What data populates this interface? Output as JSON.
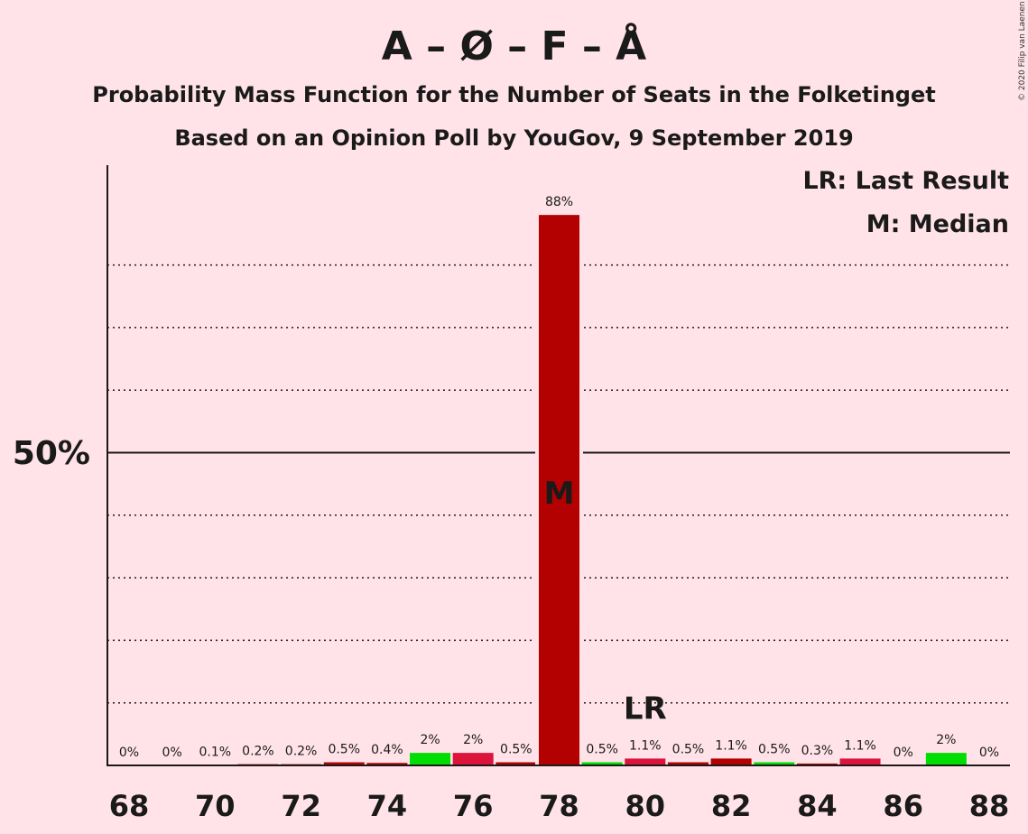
{
  "title": "A – Ø – F – Å",
  "subtitle_1": "Probability Mass Function for the Number of Seats in the Folketinget",
  "subtitle_2": "Based on an Opinion Poll by YouGov, 9 September 2019",
  "copyright": "© 2020 Filip van Laenen",
  "legend": {
    "last_result": "LR: Last Result",
    "median": "M: Median"
  },
  "colors": {
    "background": "#ffe3e8",
    "median_bar": "#b30000",
    "crimson_bar": "#dc143c",
    "green_bar": "#00dd00",
    "text": "#1a1a1a"
  },
  "chart_data": {
    "type": "bar",
    "x": [
      68,
      69,
      70,
      71,
      72,
      73,
      74,
      75,
      76,
      77,
      78,
      79,
      80,
      81,
      82,
      83,
      84,
      85,
      86,
      87,
      88
    ],
    "values": [
      0,
      0,
      0.1,
      0.2,
      0.2,
      0.5,
      0.4,
      2,
      2,
      0.5,
      88,
      0.5,
      1.1,
      0.5,
      1.1,
      0.5,
      0.3,
      1.1,
      0,
      2,
      0
    ],
    "labels": [
      "0%",
      "0%",
      "0.1%",
      "0.2%",
      "0.2%",
      "0.5%",
      "0.4%",
      "2%",
      "2%",
      "0.5%",
      "88%",
      "0.5%",
      "1.1%",
      "0.5%",
      "1.1%",
      "0.5%",
      "0.3%",
      "1.1%",
      "0%",
      "2%",
      "0%"
    ],
    "bar_colors": [
      "#b30000",
      "#b30000",
      "#b30000",
      "#b30000",
      "#b30000",
      "#b30000",
      "#b30000",
      "#00dd00",
      "#dc143c",
      "#b30000",
      "#b30000",
      "#00dd00",
      "#dc143c",
      "#b30000",
      "#b30000",
      "#00dd00",
      "#b30000",
      "#dc143c",
      "#b30000",
      "#00dd00",
      "#b30000"
    ],
    "x_tick_labels": [
      "68",
      "70",
      "72",
      "74",
      "76",
      "78",
      "80",
      "82",
      "84",
      "86",
      "88"
    ],
    "y_tick_label": "50%",
    "ylim": [
      0,
      96
    ],
    "y_gridlines": [
      10,
      20,
      30,
      40,
      60,
      70,
      80
    ],
    "y_major_line": 50,
    "median_seat": 78,
    "median_marker": "M",
    "last_result_seat": 80,
    "last_result_marker": "LR",
    "grid": true,
    "legend_placement": "top-right"
  }
}
